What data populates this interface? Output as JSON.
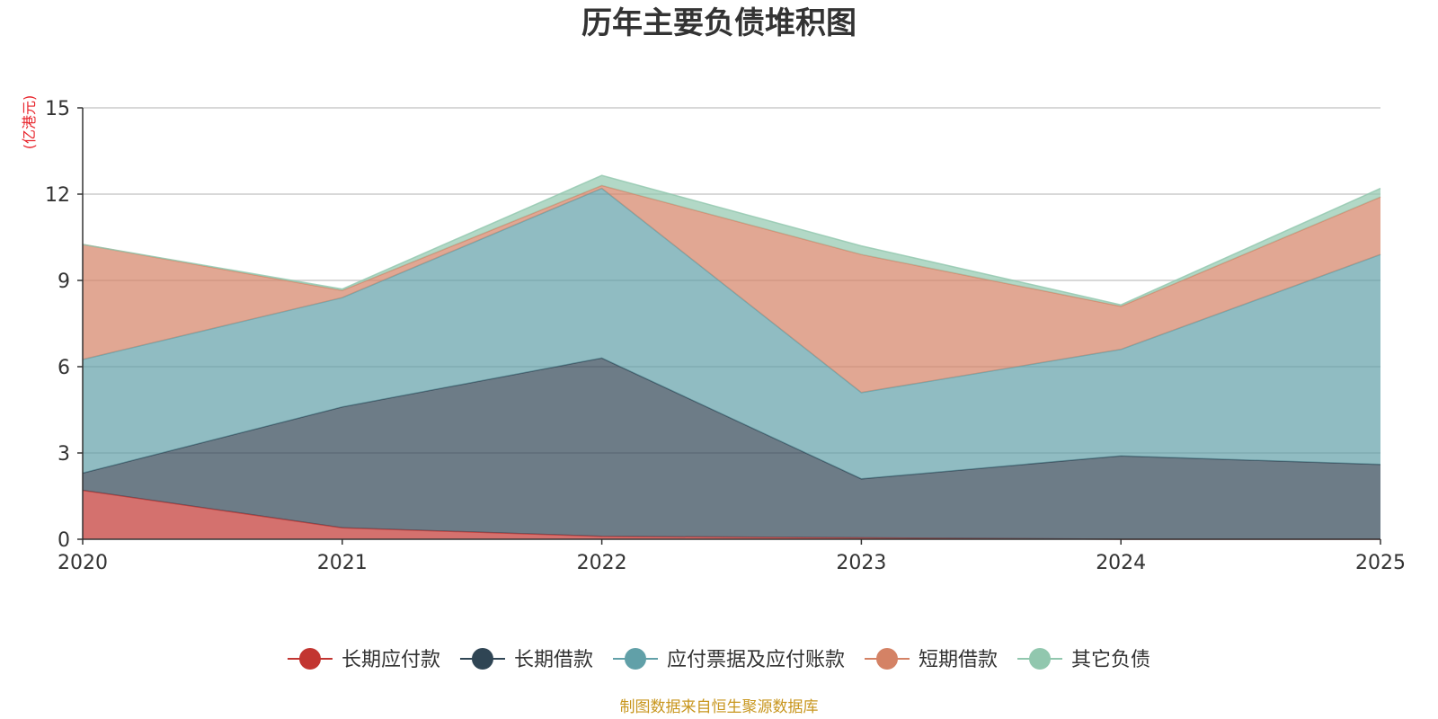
{
  "chart_data": {
    "type": "area",
    "stacked": true,
    "title": "历年主要负债堆积图",
    "unit_label": "(亿港元)",
    "source": "制图数据来自恒生聚源数据库",
    "x": [
      "2020",
      "2021",
      "2022",
      "2023",
      "2024",
      "2025"
    ],
    "ylim": [
      0,
      15
    ],
    "yticks": [
      0,
      3,
      6,
      9,
      12,
      15
    ],
    "grid": true,
    "legend_position": "bottom",
    "series": [
      {
        "name": "长期应付款",
        "color": "#c23531",
        "values": [
          1.7,
          0.4,
          0.1,
          0.05,
          0.0,
          0.0
        ]
      },
      {
        "name": "长期借款",
        "color": "#2f4554",
        "values": [
          0.6,
          4.2,
          6.2,
          2.05,
          2.9,
          2.6
        ]
      },
      {
        "name": "应付票据及应付账款",
        "color": "#61a0a8",
        "values": [
          3.95,
          3.8,
          5.9,
          3.0,
          3.7,
          7.3
        ]
      },
      {
        "name": "短期借款",
        "color": "#d48265",
        "values": [
          4.0,
          0.25,
          0.1,
          4.8,
          1.5,
          2.0
        ]
      },
      {
        "name": "其它负债",
        "color": "#91c7ae",
        "values": [
          0.0,
          0.05,
          0.35,
          0.3,
          0.05,
          0.3
        ]
      }
    ]
  }
}
